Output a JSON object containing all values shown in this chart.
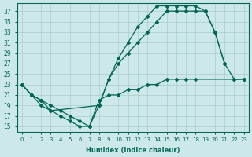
{
  "xlabel": "Humidex (Indice chaleur)",
  "background_color": "#cce8e8",
  "grid_color": "#aacccc",
  "line_color": "#006655",
  "xlim": [
    -0.5,
    23.5
  ],
  "ylim": [
    14,
    38.5
  ],
  "yticks": [
    15,
    17,
    19,
    21,
    23,
    25,
    27,
    29,
    31,
    33,
    35,
    37
  ],
  "xticks": [
    0,
    1,
    2,
    3,
    4,
    5,
    6,
    7,
    8,
    9,
    10,
    11,
    12,
    13,
    14,
    15,
    16,
    17,
    18,
    19,
    20,
    21,
    22,
    23
  ],
  "line1_x": [
    0,
    1,
    2,
    3,
    8,
    9,
    10,
    11,
    12,
    13,
    14,
    15,
    16,
    17,
    18,
    19,
    20,
    21
  ],
  "line1_y": [
    23,
    21,
    20,
    18,
    19,
    24,
    28,
    31,
    34,
    36,
    38,
    38,
    38,
    38,
    38,
    37,
    33,
    27
  ],
  "line2_x": [
    0,
    1,
    2,
    3,
    4,
    5,
    6,
    7,
    8,
    9,
    10,
    11,
    12,
    13,
    14,
    15,
    16,
    17,
    18,
    19,
    20,
    21,
    22,
    23
  ],
  "line2_y": [
    23,
    21,
    20,
    19,
    18,
    17,
    16,
    15,
    19,
    24,
    27,
    29,
    31,
    33,
    35,
    37,
    37,
    37,
    37,
    37,
    33,
    27,
    24,
    24
  ],
  "line3_x": [
    0,
    1,
    2,
    3,
    4,
    5,
    6,
    7,
    8,
    9,
    10,
    11,
    12,
    13,
    14,
    15,
    16,
    17,
    18,
    22,
    23
  ],
  "line3_y": [
    23,
    21,
    19,
    18,
    17,
    16,
    15,
    15,
    20,
    21,
    21,
    22,
    22,
    23,
    23,
    24,
    24,
    24,
    24,
    24,
    24
  ]
}
